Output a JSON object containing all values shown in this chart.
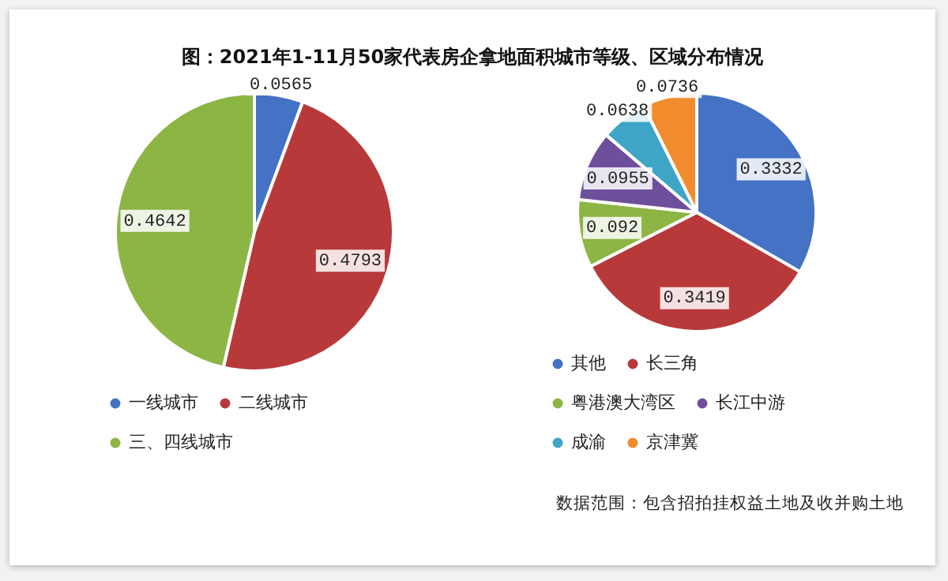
{
  "chart_data": [
    {
      "type": "pie",
      "title": "图：2021年1-11月50家代表房企拿地面积城市等级、区域分布情况",
      "categories": [
        "一线城市",
        "二线城市",
        "三、四线城市"
      ],
      "values": [
        0.0565,
        0.4793,
        0.4642
      ],
      "colors": [
        "#4472c4",
        "#b8393a",
        "#8cb544"
      ],
      "data_labels": true,
      "legend": "bottom"
    },
    {
      "type": "pie",
      "categories": [
        "其他",
        "长三角",
        "粤港澳大湾区",
        "长江中游",
        "成渝",
        "京津冀"
      ],
      "values": [
        0.3332,
        0.3419,
        0.092,
        0.0955,
        0.0638,
        0.0736
      ],
      "colors": [
        "#4472c4",
        "#b8393a",
        "#8cb544",
        "#6e4f9c",
        "#3ea5c6",
        "#f08c2e"
      ],
      "data_labels": true,
      "legend": "bottom",
      "annotations": [
        "数据范围：包含招拍挂权益土地及收并购土地"
      ]
    }
  ]
}
